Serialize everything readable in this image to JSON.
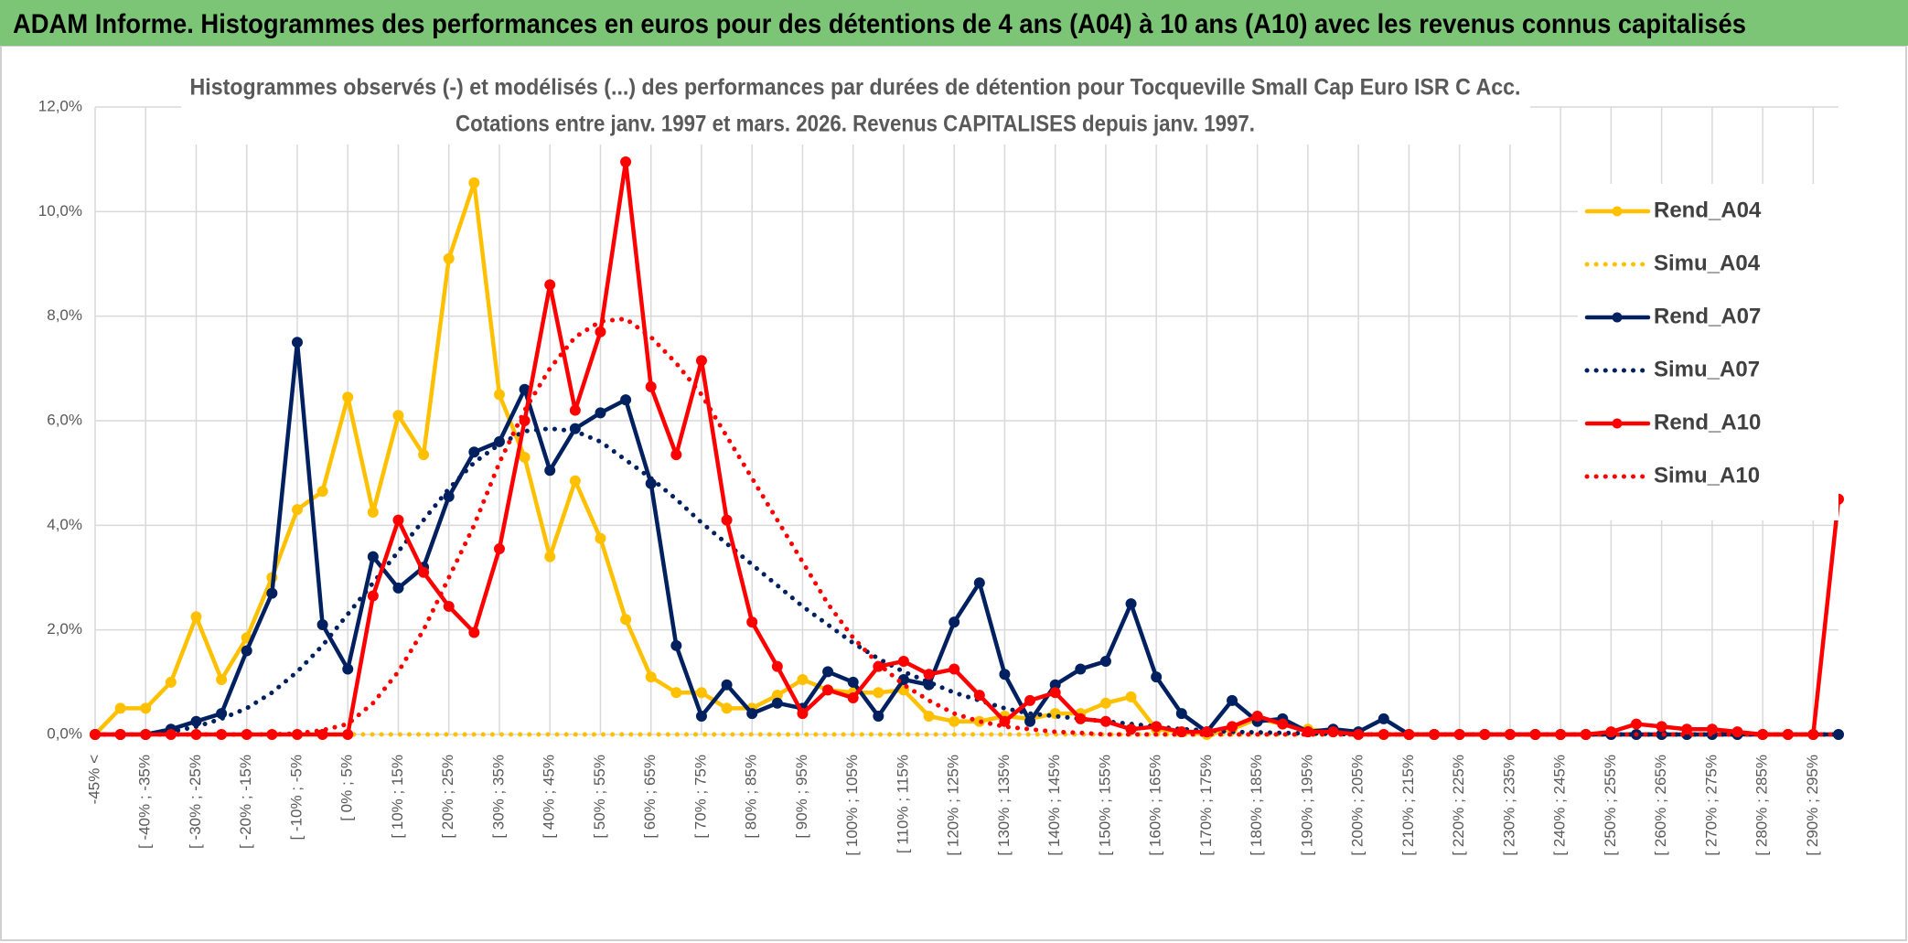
{
  "chart_data": {
    "type": "line",
    "title": "ADAM Informe. Histogrammes des performances en euros pour des détentions de 4 ans (A04) à 10 ans (A10) avec les revenus connus capitalisés",
    "subtitle": [
      "Histogrammes observés (-) et modélisés (...) des performances par durées de détention pour Tocqueville Small Cap Euro ISR C Acc.",
      "Cotations entre janv. 1997 et mars. 2026. Revenus CAPITALISES depuis janv. 1997."
    ],
    "categories": [
      "-45% <",
      null,
      "[ -40% ; -35%",
      null,
      "[ -30% ; -25%",
      null,
      "[ -20% ; -15%",
      null,
      "[ -10% ; -5%",
      null,
      "[ 0% ; 5%",
      null,
      "[ 10% ; 15%",
      null,
      "[ 20% ; 25%",
      null,
      "[ 30% ; 35%",
      null,
      "[ 40% ; 45%",
      null,
      "[ 50% ; 55%",
      null,
      "[ 60% ; 65%",
      null,
      "[ 70% ; 75%",
      null,
      "[ 80% ; 85%",
      null,
      "[ 90% ; 95%",
      null,
      "[ 100% ; 105%",
      null,
      "[ 110% ; 115%",
      null,
      "[ 120% ; 125%",
      null,
      "[ 130% ; 135%",
      null,
      "[ 140% ; 145%",
      null,
      "[ 150% ; 155%",
      null,
      "[ 160% ; 165%",
      null,
      "[ 170% ; 175%",
      null,
      "[ 180% ; 185%",
      null,
      "[ 190% ; 195%",
      null,
      "[ 200% ; 205%",
      null,
      "[ 210% ; 215%",
      null,
      "[ 220% ; 225%",
      null,
      "[ 230% ; 235%",
      null,
      "[ 240% ; 245%",
      null,
      "[ 250% ; 255%",
      null,
      "[ 260% ; 265%",
      null,
      "[ 270% ; 275%",
      null,
      "[ 280% ; 285%",
      null,
      "[ 290% ; 295%",
      null
    ],
    "series": [
      {
        "name": "Rend_A04",
        "color": "#ffc000",
        "style": "solid",
        "markers": true,
        "values": [
          0,
          0.5,
          0.5,
          1.0,
          2.25,
          1.05,
          1.85,
          3.0,
          4.3,
          4.65,
          6.45,
          4.25,
          6.1,
          5.35,
          9.1,
          10.55,
          6.5,
          5.3,
          3.4,
          4.85,
          3.75,
          2.2,
          1.1,
          0.8,
          0.8,
          0.5,
          0.5,
          0.75,
          1.05,
          0.85,
          0.8,
          0.8,
          0.85,
          0.35,
          0.25,
          0.25,
          0.35,
          0.3,
          0.4,
          0.4,
          0.6,
          0.72,
          0.1,
          0.05,
          0,
          0.1,
          0.3,
          0.2,
          0.1,
          0.05,
          0,
          0,
          0,
          0,
          0,
          0,
          0,
          0,
          0,
          0,
          0,
          0,
          0,
          0,
          0,
          0,
          0,
          0,
          0,
          0
        ]
      },
      {
        "name": "Simu_A04",
        "color": "#ffc000",
        "style": "dotted",
        "markers": false,
        "values": [
          0,
          0,
          0,
          0,
          0,
          0,
          0,
          0,
          0,
          0,
          0,
          0,
          0,
          0,
          0,
          0,
          0,
          0,
          0,
          0,
          0,
          0,
          0,
          0,
          0,
          0,
          0,
          0,
          0,
          0,
          0,
          0,
          0,
          0,
          0,
          0,
          0,
          0,
          0,
          0,
          0,
          0,
          0,
          0,
          0,
          0,
          0,
          0,
          0,
          0,
          0,
          0,
          0,
          0,
          0,
          0,
          0,
          0,
          0,
          0,
          0,
          0,
          0,
          0,
          0,
          0,
          0,
          0,
          0,
          0
        ]
      },
      {
        "name": "Rend_A07",
        "color": "#002060",
        "style": "solid",
        "markers": true,
        "values": [
          0,
          0,
          0,
          0.1,
          0.25,
          0.4,
          1.6,
          2.7,
          7.5,
          2.1,
          1.25,
          3.4,
          2.8,
          3.2,
          4.55,
          5.4,
          5.6,
          6.6,
          5.05,
          5.85,
          6.15,
          6.4,
          4.8,
          1.7,
          0.35,
          0.95,
          0.4,
          0.6,
          0.5,
          1.2,
          1.0,
          0.35,
          1.05,
          0.95,
          2.15,
          2.9,
          1.15,
          0.25,
          0.95,
          1.25,
          1.4,
          2.5,
          1.1,
          0.4,
          0.05,
          0.65,
          0.25,
          0.3,
          0.05,
          0.1,
          0.05,
          0.3,
          0,
          0,
          0,
          0,
          0,
          0,
          0,
          0,
          0,
          0,
          0,
          0,
          0,
          0,
          0,
          0,
          0,
          0
        ]
      },
      {
        "name": "Simu_A07",
        "color": "#002060",
        "style": "dotted",
        "markers": false,
        "values": [
          0,
          0,
          0,
          0.05,
          0.15,
          0.3,
          0.5,
          0.8,
          1.2,
          1.7,
          2.3,
          2.9,
          3.5,
          4.1,
          4.7,
          5.2,
          5.55,
          5.8,
          5.85,
          5.8,
          5.6,
          5.25,
          4.9,
          4.5,
          4.05,
          3.65,
          3.25,
          2.85,
          2.45,
          2.1,
          1.75,
          1.45,
          1.2,
          1.0,
          0.8,
          0.65,
          0.5,
          0.4,
          0.35,
          0.3,
          0.25,
          0.2,
          0.15,
          0.1,
          0.08,
          0.05,
          0.04,
          0.03,
          0.02,
          0.01,
          0,
          0,
          0,
          0,
          0,
          0,
          0,
          0,
          0,
          0,
          0,
          0,
          0,
          0,
          0,
          0,
          0,
          0,
          0,
          0
        ]
      },
      {
        "name": "Rend_A10",
        "color": "#ff0000",
        "style": "solid",
        "markers": true,
        "values": [
          0,
          0,
          0,
          0,
          0,
          0,
          0,
          0,
          0,
          0,
          0,
          2.65,
          4.1,
          3.1,
          2.45,
          1.95,
          3.55,
          6.0,
          8.6,
          6.2,
          7.7,
          10.95,
          6.65,
          5.35,
          7.15,
          4.1,
          2.15,
          1.3,
          0.4,
          0.85,
          0.7,
          1.3,
          1.4,
          1.15,
          1.25,
          0.75,
          0.25,
          0.65,
          0.8,
          0.3,
          0.25,
          0.1,
          0.15,
          0.05,
          0.05,
          0.15,
          0.35,
          0.2,
          0.05,
          0.05,
          0,
          0,
          0,
          0,
          0,
          0,
          0,
          0,
          0,
          0,
          0.05,
          0.2,
          0.15,
          0.1,
          0.1,
          0.05,
          0,
          0,
          0,
          4.5
        ]
      },
      {
        "name": "Simu_A10",
        "color": "#ff0000",
        "style": "dotted",
        "markers": false,
        "values": [
          0,
          0,
          0,
          0,
          0,
          0,
          0,
          0,
          0.02,
          0.08,
          0.2,
          0.6,
          1.2,
          2.0,
          3.0,
          4.0,
          5.2,
          6.2,
          7.0,
          7.6,
          7.9,
          7.95,
          7.6,
          7.1,
          6.5,
          5.7,
          4.9,
          4.1,
          3.3,
          2.5,
          1.85,
          1.35,
          0.95,
          0.65,
          0.4,
          0.25,
          0.15,
          0.1,
          0.05,
          0.03,
          0,
          0,
          0,
          0,
          0,
          0,
          0,
          0,
          0,
          0,
          0,
          0,
          0,
          0,
          0,
          0,
          0,
          0,
          0,
          0,
          0,
          0,
          0,
          0,
          0,
          0,
          0,
          0,
          0,
          0
        ]
      }
    ],
    "ylim": [
      0,
      12
    ],
    "yticks": [
      {
        "value": 0,
        "label": "0,0%"
      },
      {
        "value": 2,
        "label": "2,0%"
      },
      {
        "value": 4,
        "label": "4,0%"
      },
      {
        "value": 6,
        "label": "6,0%"
      },
      {
        "value": 8,
        "label": "8,0%"
      },
      {
        "value": 10,
        "label": "10,0%"
      },
      {
        "value": 12,
        "label": "12,0%"
      }
    ],
    "grid": true,
    "legend": "right"
  }
}
